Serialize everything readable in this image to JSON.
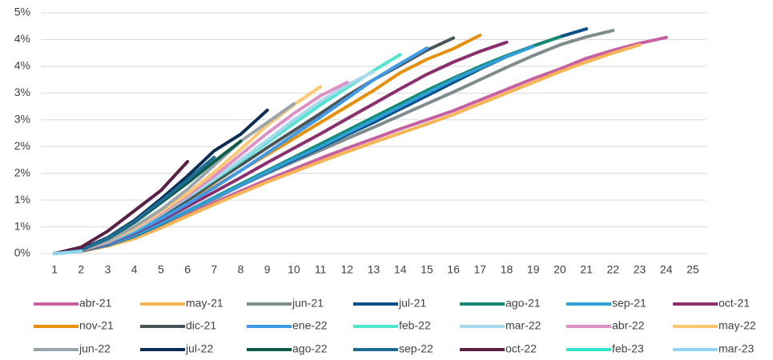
{
  "chart_data": {
    "type": "line",
    "x": [
      1,
      2,
      3,
      4,
      5,
      6,
      7,
      8,
      9,
      10,
      11,
      12,
      13,
      14,
      15,
      16,
      17,
      18,
      19,
      20,
      21,
      22,
      23,
      24,
      25
    ],
    "xlim": [
      0.5,
      25.5
    ],
    "xticks": [
      1,
      2,
      3,
      4,
      5,
      6,
      7,
      8,
      9,
      10,
      11,
      12,
      13,
      14,
      15,
      16,
      17,
      18,
      19,
      20,
      21,
      22,
      23,
      24,
      25
    ],
    "ylim": [
      0,
      4.5
    ],
    "yticks": [
      {
        "value": 0,
        "label": "0%"
      },
      {
        "value": 0.5,
        "label": "1%"
      },
      {
        "value": 1,
        "label": "1%"
      },
      {
        "value": 1.5,
        "label": "2%"
      },
      {
        "value": 2,
        "label": "2%"
      },
      {
        "value": 2.5,
        "label": "3%"
      },
      {
        "value": 3,
        "label": "3%"
      },
      {
        "value": 3.5,
        "label": "4%"
      },
      {
        "value": 4,
        "label": "4%"
      },
      {
        "value": 4.5,
        "label": "5%"
      }
    ],
    "grid": true,
    "legend": "bottom",
    "series": [
      {
        "name": "abr-21",
        "color": "#c75fa0",
        "values": [
          0,
          0.05,
          0.15,
          0.3,
          0.5,
          0.72,
          0.95,
          1.17,
          1.38,
          1.58,
          1.78,
          1.97,
          2.15,
          2.33,
          2.5,
          2.67,
          2.87,
          3.07,
          3.27,
          3.45,
          3.65,
          3.8,
          3.93,
          4.04,
          null
        ]
      },
      {
        "name": "may-21",
        "color": "#f6b453",
        "values": [
          0,
          0.04,
          0.14,
          0.28,
          0.48,
          0.7,
          0.92,
          1.13,
          1.34,
          1.53,
          1.72,
          1.9,
          2.08,
          2.25,
          2.42,
          2.6,
          2.8,
          3.0,
          3.2,
          3.4,
          3.58,
          3.75,
          3.9,
          null,
          null
        ]
      },
      {
        "name": "jun-21",
        "color": "#7f8c8d",
        "values": [
          0,
          0.05,
          0.16,
          0.32,
          0.54,
          0.78,
          1.02,
          1.27,
          1.5,
          1.72,
          1.93,
          2.15,
          2.36,
          2.58,
          2.8,
          3.02,
          3.25,
          3.48,
          3.7,
          3.9,
          4.05,
          4.17,
          null,
          null,
          null
        ]
      },
      {
        "name": "jul-21",
        "color": "#0b4f8a",
        "values": [
          0,
          0.05,
          0.16,
          0.33,
          0.55,
          0.8,
          1.04,
          1.28,
          1.52,
          1.75,
          1.98,
          2.22,
          2.45,
          2.7,
          2.95,
          3.2,
          3.45,
          3.68,
          3.88,
          4.05,
          4.2,
          null,
          null,
          null,
          null
        ]
      },
      {
        "name": "ago-21",
        "color": "#138a72",
        "values": [
          0,
          0.05,
          0.17,
          0.34,
          0.56,
          0.8,
          1.05,
          1.3,
          1.55,
          1.8,
          2.05,
          2.3,
          2.55,
          2.8,
          3.05,
          3.28,
          3.5,
          3.7,
          3.88,
          4.05,
          null,
          null,
          null,
          null,
          null
        ]
      },
      {
        "name": "sep-21",
        "color": "#2f9fd6",
        "values": [
          0,
          0.05,
          0.17,
          0.34,
          0.56,
          0.8,
          1.04,
          1.28,
          1.53,
          1.77,
          2.0,
          2.25,
          2.5,
          2.75,
          3.0,
          3.25,
          3.47,
          3.68,
          3.87,
          null,
          null,
          null,
          null,
          null,
          null
        ]
      },
      {
        "name": "oct-21",
        "color": "#8c2f6e",
        "values": [
          0,
          0.05,
          0.19,
          0.38,
          0.62,
          0.88,
          1.15,
          1.42,
          1.7,
          1.97,
          2.24,
          2.52,
          2.8,
          3.08,
          3.35,
          3.58,
          3.78,
          3.95,
          null,
          null,
          null,
          null,
          null,
          null,
          null
        ]
      },
      {
        "name": "nov-21",
        "color": "#e8900a",
        "values": [
          0,
          0.06,
          0.2,
          0.4,
          0.67,
          0.95,
          1.25,
          1.55,
          1.85,
          2.15,
          2.45,
          2.75,
          3.05,
          3.38,
          3.63,
          3.83,
          4.08,
          null,
          null,
          null,
          null,
          null,
          null,
          null,
          null
        ]
      },
      {
        "name": "dic-21",
        "color": "#4a5559",
        "values": [
          0,
          0.06,
          0.2,
          0.42,
          0.7,
          1.0,
          1.33,
          1.65,
          1.98,
          2.3,
          2.62,
          2.95,
          3.25,
          3.52,
          3.8,
          4.03,
          null,
          null,
          null,
          null,
          null,
          null,
          null,
          null,
          null
        ]
      },
      {
        "name": "ene-22",
        "color": "#3d9be9",
        "values": [
          0,
          0.06,
          0.2,
          0.4,
          0.65,
          0.93,
          1.23,
          1.55,
          1.88,
          2.22,
          2.55,
          2.9,
          3.25,
          3.55,
          3.84,
          null,
          null,
          null,
          null,
          null,
          null,
          null,
          null,
          null,
          null
        ]
      },
      {
        "name": "feb-22",
        "color": "#4fe6cf",
        "values": [
          0,
          0.06,
          0.22,
          0.44,
          0.73,
          1.05,
          1.38,
          1.72,
          2.08,
          2.43,
          2.78,
          3.1,
          3.42,
          3.72,
          null,
          null,
          null,
          null,
          null,
          null,
          null,
          null,
          null,
          null,
          null
        ]
      },
      {
        "name": "mar-22",
        "color": "#a8d8ec",
        "values": [
          0,
          0.06,
          0.22,
          0.45,
          0.74,
          1.06,
          1.4,
          1.75,
          2.12,
          2.5,
          2.85,
          3.15,
          3.4,
          null,
          null,
          null,
          null,
          null,
          null,
          null,
          null,
          null,
          null,
          null,
          null
        ]
      },
      {
        "name": "abr-22",
        "color": "#e08fc4",
        "values": [
          0,
          0.06,
          0.22,
          0.46,
          0.75,
          1.08,
          1.45,
          1.85,
          2.25,
          2.62,
          2.95,
          3.2,
          null,
          null,
          null,
          null,
          null,
          null,
          null,
          null,
          null,
          null,
          null,
          null,
          null
        ]
      },
      {
        "name": "may-22",
        "color": "#ffc870",
        "values": [
          0,
          0.06,
          0.23,
          0.47,
          0.78,
          1.12,
          1.52,
          1.95,
          2.4,
          2.78,
          3.12,
          null,
          null,
          null,
          null,
          null,
          null,
          null,
          null,
          null,
          null,
          null,
          null,
          null,
          null
        ]
      },
      {
        "name": "jun-22",
        "color": "#9aa4ab",
        "values": [
          0,
          0.06,
          0.24,
          0.5,
          0.82,
          1.2,
          1.65,
          2.1,
          2.45,
          2.8,
          null,
          null,
          null,
          null,
          null,
          null,
          null,
          null,
          null,
          null,
          null,
          null,
          null,
          null,
          null
        ]
      },
      {
        "name": "jul-22",
        "color": "#0b2e56",
        "values": [
          0,
          0.08,
          0.3,
          0.62,
          1.02,
          1.45,
          1.92,
          2.23,
          2.68,
          null,
          null,
          null,
          null,
          null,
          null,
          null,
          null,
          null,
          null,
          null,
          null,
          null,
          null,
          null,
          null
        ]
      },
      {
        "name": "ago-22",
        "color": "#0b5e4a",
        "values": [
          0,
          0.07,
          0.28,
          0.58,
          0.95,
          1.32,
          1.72,
          2.1,
          null,
          null,
          null,
          null,
          null,
          null,
          null,
          null,
          null,
          null,
          null,
          null,
          null,
          null,
          null,
          null,
          null
        ]
      },
      {
        "name": "sep-22",
        "color": "#1c6c94",
        "values": [
          0,
          0.07,
          0.29,
          0.6,
          0.98,
          1.38,
          1.8,
          null,
          null,
          null,
          null,
          null,
          null,
          null,
          null,
          null,
          null,
          null,
          null,
          null,
          null,
          null,
          null,
          null,
          null
        ]
      },
      {
        "name": "oct-22",
        "color": "#5a1f44",
        "values": [
          0,
          0.12,
          0.42,
          0.8,
          1.18,
          1.72,
          null,
          null,
          null,
          null,
          null,
          null,
          null,
          null,
          null,
          null,
          null,
          null,
          null,
          null,
          null,
          null,
          null,
          null,
          null
        ]
      },
      {
        "name": "feb-23",
        "color": "#2ee6c8",
        "values": [
          0,
          0.05,
          null,
          null,
          null,
          null,
          null,
          null,
          null,
          null,
          null,
          null,
          null,
          null,
          null,
          null,
          null,
          null,
          null,
          null,
          null,
          null,
          null,
          null,
          null
        ]
      },
      {
        "name": "mar-23",
        "color": "#90d4ee",
        "values": [
          0,
          0.04,
          null,
          null,
          null,
          null,
          null,
          null,
          null,
          null,
          null,
          null,
          null,
          null,
          null,
          null,
          null,
          null,
          null,
          null,
          null,
          null,
          null,
          null,
          null
        ]
      }
    ]
  }
}
